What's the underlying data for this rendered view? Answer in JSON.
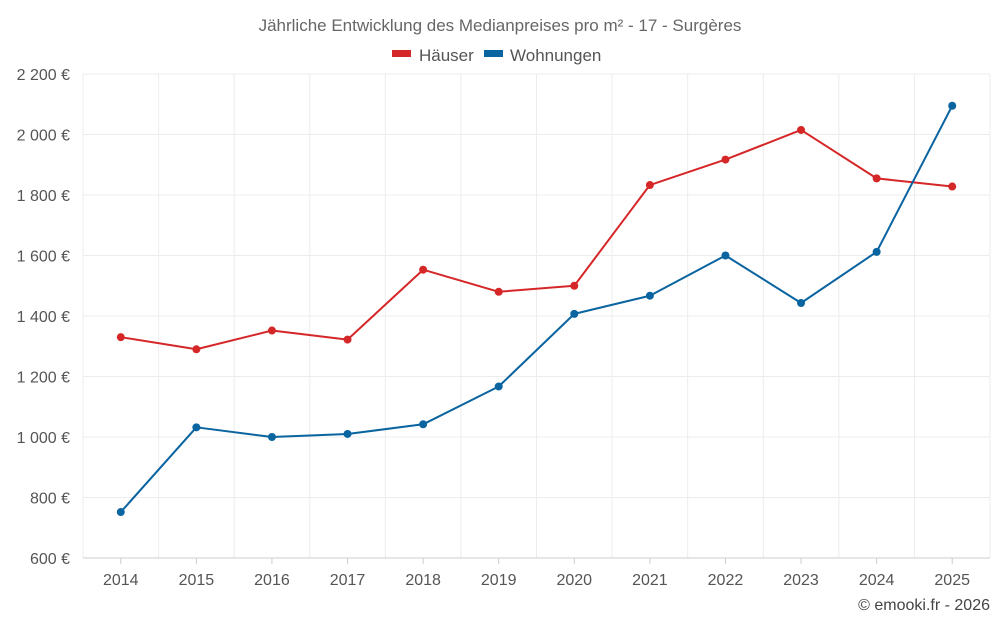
{
  "chart_data": {
    "type": "line",
    "title": "Jährliche Entwicklung des Medianpreises pro m² - 17 - Surgères",
    "categories": [
      "2014",
      "2015",
      "2016",
      "2017",
      "2018",
      "2019",
      "2020",
      "2021",
      "2022",
      "2023",
      "2024",
      "2025"
    ],
    "series": [
      {
        "name": "Häuser",
        "color": "#d62728",
        "values": [
          1330,
          1290,
          1352,
          1322,
          1553,
          1480,
          1500,
          1833,
          1917,
          2015,
          1855,
          1828
        ]
      },
      {
        "name": "Wohnungen",
        "color": "#0a64a0",
        "values": [
          752,
          1032,
          1000,
          1010,
          1042,
          1167,
          1407,
          1467,
          1600,
          1443,
          1612,
          2095
        ]
      }
    ],
    "ylim": [
      600,
      2200
    ],
    "yticks": [
      600,
      800,
      1000,
      1200,
      1400,
      1600,
      1800,
      2000,
      2200
    ],
    "ytick_labels": [
      "600 €",
      "800 €",
      "1 000 €",
      "1 200 €",
      "1 400 €",
      "1 600 €",
      "1 800 €",
      "2 000 €",
      "2 200 €"
    ],
    "xlabel": "",
    "ylabel": "",
    "grid": true,
    "legend_position": "top-center"
  },
  "credit": "© emooki.fr - 2026"
}
